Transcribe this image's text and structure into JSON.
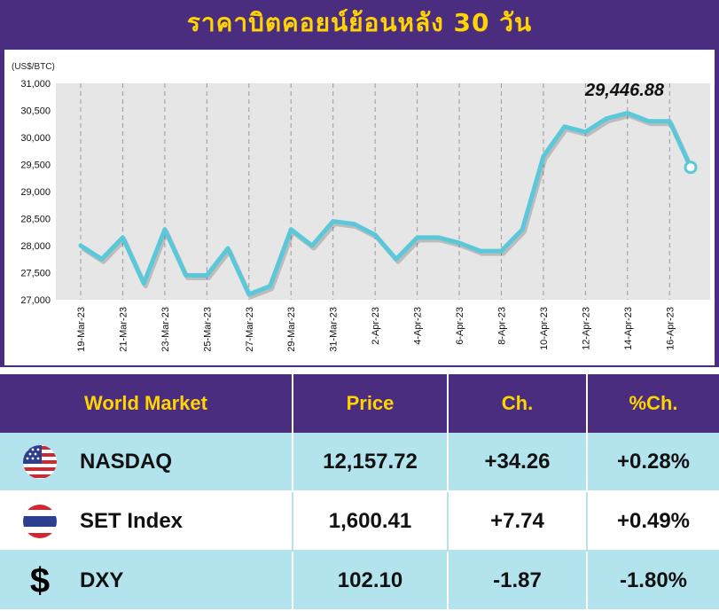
{
  "title": "ราคาบิตคอยน์ย้อนหลัง 30 วัน",
  "colors": {
    "background": "#4b2d7f",
    "title": "#ffd400",
    "line": "#5bc8d9",
    "table_light": "#b3e4ee"
  },
  "chart_data": {
    "type": "line",
    "unit_label": "(US$/BTC)",
    "ylim": [
      27000,
      31000
    ],
    "yticks": [
      "31,000",
      "30,500",
      "30,000",
      "29,500",
      "29,000",
      "28,500",
      "28,000",
      "27,500",
      "27,000"
    ],
    "ytick_values": [
      31000,
      30500,
      30000,
      29500,
      29000,
      28500,
      28000,
      27500,
      27000
    ],
    "grid": "vertical-dashed",
    "x": [
      "19-Mar-23",
      "20-Mar-23",
      "21-Mar-23",
      "22-Mar-23",
      "23-Mar-23",
      "24-Mar-23",
      "25-Mar-23",
      "26-Mar-23",
      "27-Mar-23",
      "28-Mar-23",
      "29-Mar-23",
      "30-Mar-23",
      "31-Mar-23",
      "1-Apr-23",
      "2-Apr-23",
      "3-Apr-23",
      "4-Apr-23",
      "5-Apr-23",
      "6-Apr-23",
      "7-Apr-23",
      "8-Apr-23",
      "9-Apr-23",
      "10-Apr-23",
      "11-Apr-23",
      "12-Apr-23",
      "13-Apr-23",
      "14-Apr-23",
      "15-Apr-23",
      "16-Apr-23",
      "17-Apr-23"
    ],
    "xtick_labels": [
      "19-Mar-23",
      "21-Mar-23",
      "23-Mar-23",
      "25-Mar-23",
      "27-Mar-23",
      "29-Mar-23",
      "31-Mar-23",
      "2-Apr-23",
      "4-Apr-23",
      "6-Apr-23",
      "8-Apr-23",
      "10-Apr-23",
      "12-Apr-23",
      "14-Apr-23",
      "16-Apr-23"
    ],
    "values": [
      28000,
      27750,
      28150,
      27300,
      28300,
      27450,
      27450,
      27950,
      27100,
      27250,
      28300,
      28000,
      28450,
      28400,
      28200,
      27750,
      28150,
      28150,
      28050,
      27900,
      27900,
      28300,
      29650,
      30200,
      30100,
      30350,
      30450,
      30300,
      30300,
      29446.88
    ],
    "annotation": "29,446.88"
  },
  "table": {
    "headers": [
      "World Market",
      "Price",
      "Ch.",
      "%Ch."
    ],
    "rows": [
      {
        "icon": "us-flag-icon",
        "name": "NASDAQ",
        "price": "12,157.72",
        "change": "+34.26",
        "pct": "+0.28%"
      },
      {
        "icon": "thai-flag-icon",
        "name": "SET Index",
        "price": "1,600.41",
        "change": "+7.74",
        "pct": "+0.49%"
      },
      {
        "icon": "dollar-icon",
        "name": "DXY",
        "price": "102.10",
        "change": "-1.87",
        "pct": "-1.80%"
      }
    ]
  }
}
